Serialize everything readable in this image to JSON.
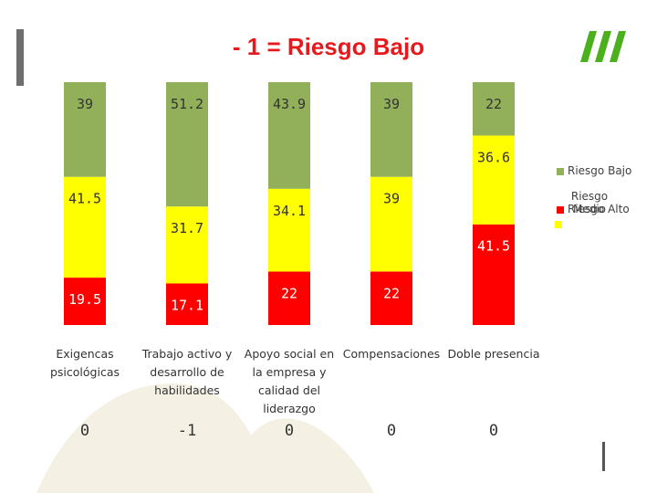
{
  "title": "- 1 = Riesgo Bajo",
  "colors": {
    "bajo": "#92b05a",
    "medio": "#ffff00",
    "alto": "#ff0000",
    "title": "#e8191c",
    "logo": "#4caf1e",
    "decor": "#f4f1e4"
  },
  "legend": [
    {
      "label": "Riesgo Bajo",
      "color": "#92b05a"
    },
    {
      "label": "Riesgo Medio",
      "color": "#ffff00"
    },
    {
      "label": "Riesgo Alto",
      "color": "#ff0000"
    }
  ],
  "chart_data": {
    "type": "bar",
    "stacked": "percent",
    "categories": [
      "Exigencas psicológicas",
      "Trabajo activo y desarrollo de habilidades",
      "Apoyo social en la empresa y calidad del liderazgo",
      "Compensaciones",
      "Doble presencia"
    ],
    "category_lines": [
      [
        "Exigencas",
        "psicológicas"
      ],
      [
        "Trabajo activo y",
        "desarrollo de",
        "habilidades"
      ],
      [
        "Apoyo social en",
        "la empresa y",
        "calidad del",
        "liderazgo"
      ],
      [
        "Compensaciones"
      ],
      [
        "Doble presencia"
      ]
    ],
    "series": [
      {
        "name": "Riesgo Alto",
        "values": [
          19.5,
          17.1,
          22,
          22,
          41.5
        ],
        "labels": [
          "19.5",
          "17.1",
          "22",
          "22",
          "41.5"
        ]
      },
      {
        "name": "Riesgo Medio",
        "values": [
          41.5,
          31.7,
          34.1,
          39,
          36.6
        ],
        "labels": [
          "41.5",
          "31.7",
          "34.1",
          "39",
          "36.6"
        ]
      },
      {
        "name": "Riesgo Bajo",
        "values": [
          39,
          51.2,
          43.9,
          39,
          22
        ],
        "labels": [
          "39",
          "51.2",
          "43.9",
          "39",
          "22"
        ]
      }
    ],
    "scores": [
      "0",
      "-1",
      "0",
      "0",
      "0"
    ],
    "legend_position": "right",
    "grid": false
  }
}
